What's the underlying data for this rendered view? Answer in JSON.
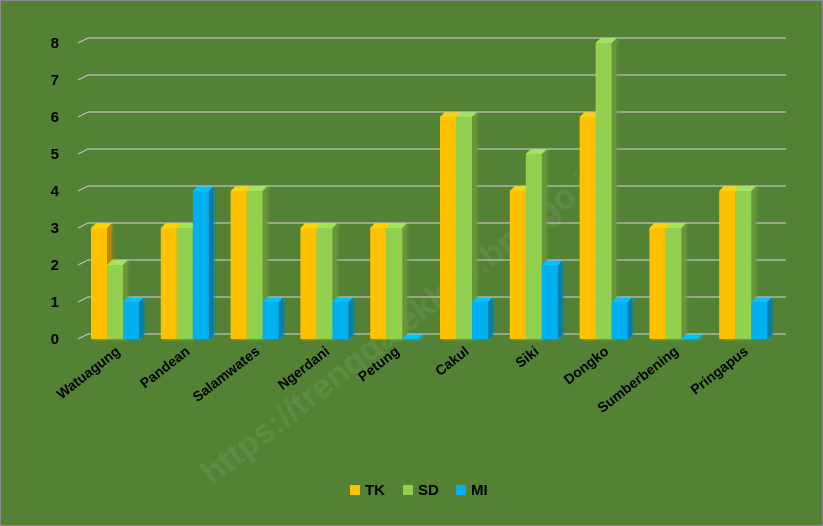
{
  "chart_data": {
    "type": "bar",
    "categories": [
      "Watuagung",
      "Pandean",
      "Salamwates",
      "Ngerdani",
      "Petung",
      "Cakul",
      "Siki",
      "Dongko",
      "Sumberbening",
      "Pringapus"
    ],
    "series": [
      {
        "name": "TK",
        "values": [
          3,
          3,
          4,
          3,
          3,
          6,
          4,
          6,
          3,
          4
        ]
      },
      {
        "name": "SD",
        "values": [
          2,
          3,
          4,
          3,
          3,
          6,
          5,
          8,
          3,
          4
        ]
      },
      {
        "name": "MI",
        "values": [
          1,
          4,
          1,
          1,
          0,
          1,
          2,
          1,
          0,
          1
        ]
      }
    ],
    "y_ticks": [
      "0",
      "1",
      "2",
      "3",
      "4",
      "5",
      "6",
      "7",
      "8"
    ],
    "ylim": [
      0,
      8
    ],
    "grid": true,
    "legend_position": "bottom",
    "title": "",
    "xlabel": "",
    "ylabel": "",
    "watermark": "https://trenggalekkab.bps.go.id"
  },
  "colors": {
    "background": "#548235",
    "TK": "#ffc000",
    "SD": "#92d050",
    "MI": "#00b0f0",
    "gridline": "#bfbfbf"
  }
}
